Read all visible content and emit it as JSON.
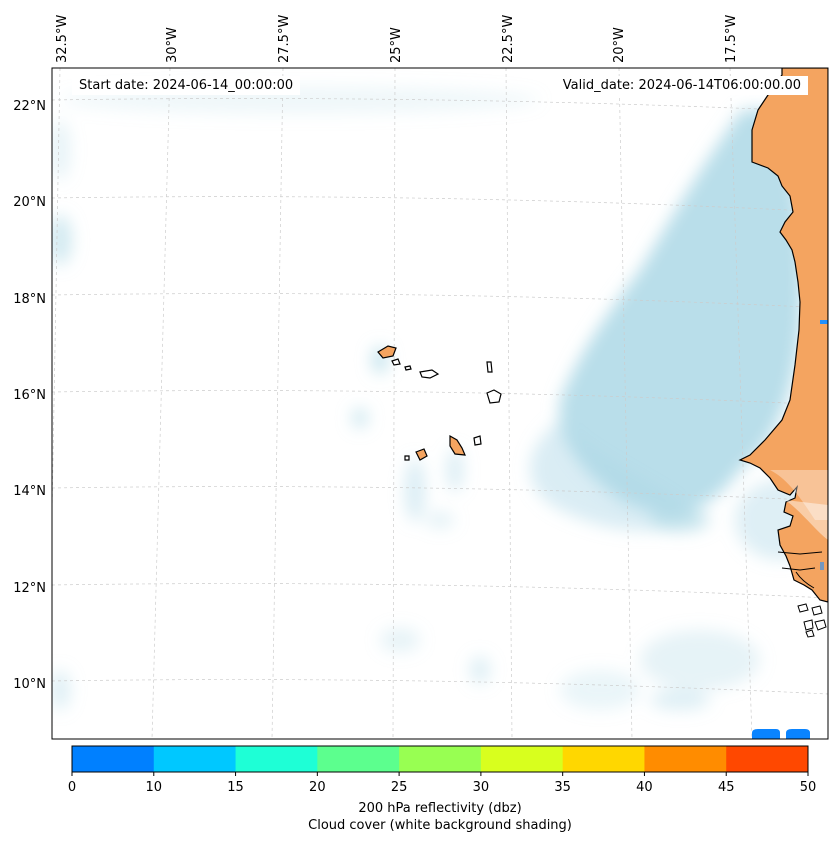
{
  "header": {
    "start_date": "Start date: 2024-06-14_00:00:00",
    "valid_date": "Valid_date: 2024-06-14T06:00:00.00"
  },
  "map": {
    "longitude_labels": [
      "32.5°W",
      "30°W",
      "27.5°W",
      "25°W",
      "22.5°W",
      "20°W",
      "17.5°W"
    ],
    "latitude_labels": [
      "22°N",
      "20°N",
      "18°N",
      "16°N",
      "14°N",
      "12°N",
      "10°N"
    ],
    "colors": {
      "land": "#f4a460",
      "cloud": "#add8e6",
      "coastline": "#000000",
      "gridline": "#cccccc"
    }
  },
  "colorbar": {
    "ticks": [
      "0",
      "10",
      "15",
      "20",
      "25",
      "30",
      "35",
      "40",
      "45",
      "50"
    ],
    "colors": [
      "#0080ff",
      "#00c8ff",
      "#1effd6",
      "#5cff8e",
      "#98ff52",
      "#d8ff1e",
      "#ffd700",
      "#ff8c00",
      "#ff4800"
    ],
    "label_line1": "200 hPa reflectivity (dbz)",
    "label_line2": "Cloud cover (white background shading)"
  }
}
